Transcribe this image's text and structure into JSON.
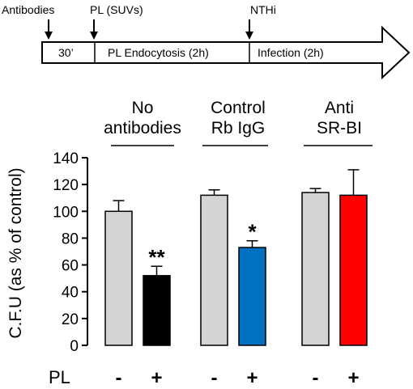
{
  "timeline": {
    "event_labels": [
      "Antibodies",
      "PL (SUVs)",
      "NTHi"
    ],
    "phase_labels": [
      "30’",
      "PL Endocytosis (2h)",
      "Infection (2h)"
    ]
  },
  "chart_data": {
    "type": "bar",
    "ylabel": "C.F.U (as % of control)",
    "ylim": [
      0,
      140
    ],
    "yticks": [
      0,
      20,
      40,
      60,
      80,
      100,
      120,
      140
    ],
    "x_row_label": "PL",
    "groups": [
      {
        "title_lines": [
          "No",
          "antibodies"
        ],
        "bars": [
          {
            "pl": "-",
            "value": 100,
            "error": 8,
            "color": "#d4d4d4",
            "significance": ""
          },
          {
            "pl": "+",
            "value": 52,
            "error": 7,
            "color": "#000000",
            "significance": "**"
          }
        ]
      },
      {
        "title_lines": [
          "Control",
          "Rb IgG"
        ],
        "bars": [
          {
            "pl": "-",
            "value": 112,
            "error": 4,
            "color": "#d4d4d4",
            "significance": ""
          },
          {
            "pl": "+",
            "value": 73,
            "error": 5,
            "color": "#0070c0",
            "significance": "*"
          }
        ]
      },
      {
        "title_lines": [
          "Anti",
          "SR-BI"
        ],
        "bars": [
          {
            "pl": "-",
            "value": 114,
            "error": 3,
            "color": "#d4d4d4",
            "significance": ""
          },
          {
            "pl": "+",
            "value": 112,
            "error": 19,
            "color": "#ff0000",
            "significance": ""
          }
        ]
      }
    ]
  }
}
